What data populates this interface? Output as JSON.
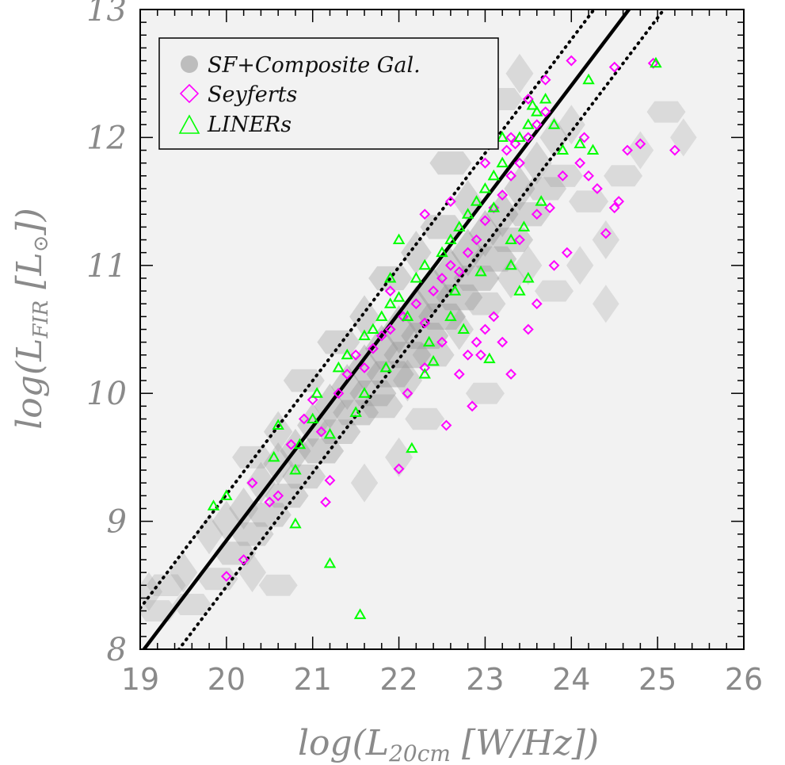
{
  "chart_data": {
    "type": "scatter",
    "title": "",
    "xlabel": "log(L20cm [W/Hz])",
    "ylabel": "log(LFIR [L⊙])",
    "xlabel_parts": {
      "pre": "log(L",
      "sub": "20cm",
      "post": " [W/Hz])"
    },
    "ylabel_parts": {
      "pre": "log(L",
      "sub": "FIR",
      "mid": " [L",
      "subsym": "⊙",
      "post": "])"
    },
    "xlim": [
      19,
      26
    ],
    "ylim": [
      8,
      13
    ],
    "x_ticks": [
      "19",
      "20",
      "21",
      "22",
      "23",
      "24",
      "25",
      "26"
    ],
    "y_ticks": [
      "8",
      "9",
      "10",
      "11",
      "12",
      "13"
    ],
    "grid": false,
    "legend_placement": "top-left",
    "legend": [
      {
        "label": "SF+Composite Gal.",
        "marker": "filled-circle",
        "color": "#bdbdbd"
      },
      {
        "label": "Seyferts",
        "marker": "diamond",
        "color": "#ff00ff"
      },
      {
        "label": "LINERs",
        "marker": "triangle",
        "color": "#00ff00"
      }
    ],
    "colors": {
      "background": "#f2f2f2",
      "density": "#9a9a9a",
      "seyferts": "#ff00ff",
      "liners": "#00ff00",
      "fit": "#000000"
    },
    "fit_line": {
      "slope": 0.889,
      "intercept": -8.93,
      "style": "solid"
    },
    "scatter_lines": [
      {
        "slope": 0.889,
        "intercept": -8.57,
        "style": "dotted"
      },
      {
        "slope": 0.889,
        "intercept": -9.29,
        "style": "dotted"
      }
    ],
    "density_cloud": [
      [
        19.1,
        8.45,
        0.25
      ],
      [
        19.3,
        8.5,
        0.3
      ],
      [
        19.5,
        8.6,
        0.35
      ],
      [
        19.6,
        8.35,
        0.25
      ],
      [
        19.8,
        8.9,
        0.35
      ],
      [
        19.9,
        8.55,
        0.35
      ],
      [
        20.0,
        9.0,
        0.4
      ],
      [
        20.1,
        8.75,
        0.45
      ],
      [
        20.2,
        9.1,
        0.45
      ],
      [
        20.3,
        8.9,
        0.5
      ],
      [
        20.4,
        9.3,
        0.45
      ],
      [
        20.5,
        9.05,
        0.55
      ],
      [
        20.6,
        9.45,
        0.5
      ],
      [
        20.7,
        9.2,
        0.55
      ],
      [
        20.8,
        9.55,
        0.6
      ],
      [
        20.9,
        9.35,
        0.55
      ],
      [
        21.0,
        9.75,
        0.6
      ],
      [
        21.1,
        9.55,
        0.65
      ],
      [
        21.2,
        9.9,
        0.65
      ],
      [
        21.3,
        9.7,
        0.6
      ],
      [
        21.4,
        10.05,
        0.7
      ],
      [
        21.5,
        9.85,
        0.7
      ],
      [
        21.6,
        10.2,
        0.75
      ],
      [
        21.7,
        10.0,
        0.75
      ],
      [
        21.8,
        10.35,
        0.8
      ],
      [
        21.9,
        10.15,
        0.8
      ],
      [
        22.0,
        10.5,
        0.85
      ],
      [
        22.1,
        10.3,
        0.8
      ],
      [
        22.2,
        10.65,
        0.85
      ],
      [
        22.3,
        10.45,
        0.8
      ],
      [
        22.4,
        10.8,
        0.85
      ],
      [
        22.5,
        10.6,
        0.8
      ],
      [
        22.6,
        10.95,
        0.8
      ],
      [
        22.7,
        10.75,
        0.75
      ],
      [
        22.8,
        11.1,
        0.8
      ],
      [
        22.9,
        10.9,
        0.7
      ],
      [
        23.0,
        11.25,
        0.75
      ],
      [
        23.1,
        11.05,
        0.7
      ],
      [
        23.2,
        11.4,
        0.7
      ],
      [
        23.3,
        11.2,
        0.6
      ],
      [
        23.4,
        11.6,
        0.6
      ],
      [
        23.5,
        11.4,
        0.55
      ],
      [
        23.6,
        11.8,
        0.5
      ],
      [
        23.7,
        11.6,
        0.45
      ],
      [
        23.8,
        12.0,
        0.4
      ],
      [
        23.9,
        11.7,
        0.35
      ],
      [
        24.0,
        12.1,
        0.3
      ],
      [
        24.2,
        11.5,
        0.3
      ],
      [
        24.4,
        11.2,
        0.25
      ],
      [
        24.6,
        11.7,
        0.25
      ],
      [
        24.8,
        11.9,
        0.2
      ],
      [
        25.1,
        12.2,
        0.25
      ],
      [
        25.3,
        12.0,
        0.2
      ],
      [
        21.3,
        10.4,
        0.5
      ],
      [
        21.6,
        10.6,
        0.5
      ],
      [
        21.9,
        10.9,
        0.55
      ],
      [
        22.2,
        11.1,
        0.55
      ],
      [
        22.5,
        11.3,
        0.55
      ],
      [
        22.8,
        11.5,
        0.5
      ],
      [
        21.8,
        9.9,
        0.5
      ],
      [
        22.1,
        10.1,
        0.45
      ],
      [
        22.4,
        10.3,
        0.45
      ],
      [
        22.7,
        10.5,
        0.4
      ],
      [
        23.0,
        10.7,
        0.4
      ],
      [
        23.3,
        10.9,
        0.35
      ],
      [
        20.9,
        10.1,
        0.4
      ],
      [
        20.6,
        9.7,
        0.4
      ],
      [
        20.3,
        9.5,
        0.35
      ],
      [
        22.0,
        9.5,
        0.3
      ],
      [
        22.3,
        9.8,
        0.3
      ],
      [
        23.5,
        11.0,
        0.3
      ],
      [
        23.8,
        10.8,
        0.25
      ],
      [
        24.1,
        11.0,
        0.25
      ],
      [
        22.6,
        11.8,
        0.45
      ],
      [
        22.9,
        12.1,
        0.4
      ],
      [
        23.2,
        12.3,
        0.35
      ],
      [
        23.4,
        12.5,
        0.3
      ],
      [
        19.2,
        8.3,
        0.25
      ],
      [
        20.3,
        8.6,
        0.3
      ],
      [
        20.6,
        8.5,
        0.25
      ],
      [
        24.4,
        10.7,
        0.2
      ],
      [
        23.0,
        10.0,
        0.25
      ],
      [
        21.6,
        9.3,
        0.25
      ]
    ],
    "series": [
      {
        "name": "Seyferts",
        "marker": "diamond",
        "points": [
          [
            20.0,
            8.57
          ],
          [
            20.2,
            8.7
          ],
          [
            20.3,
            9.3
          ],
          [
            20.5,
            9.15
          ],
          [
            20.6,
            9.2
          ],
          [
            20.75,
            9.6
          ],
          [
            20.9,
            9.8
          ],
          [
            21.0,
            9.95
          ],
          [
            21.2,
            9.32
          ],
          [
            21.15,
            9.15
          ],
          [
            21.1,
            9.7
          ],
          [
            21.3,
            10.0
          ],
          [
            21.4,
            10.15
          ],
          [
            21.5,
            10.3
          ],
          [
            21.6,
            10.2
          ],
          [
            21.7,
            10.35
          ],
          [
            21.8,
            10.45
          ],
          [
            21.9,
            10.5
          ],
          [
            22.0,
            9.41
          ],
          [
            22.05,
            10.6
          ],
          [
            22.2,
            10.7
          ],
          [
            22.3,
            10.55
          ],
          [
            22.4,
            10.8
          ],
          [
            22.5,
            10.9
          ],
          [
            22.55,
            9.75
          ],
          [
            22.6,
            11.0
          ],
          [
            22.7,
            10.95
          ],
          [
            22.8,
            11.1
          ],
          [
            22.9,
            11.2
          ],
          [
            22.7,
            10.15
          ],
          [
            22.8,
            10.3
          ],
          [
            22.9,
            10.4
          ],
          [
            23.0,
            11.35
          ],
          [
            23.1,
            11.45
          ],
          [
            23.2,
            11.55
          ],
          [
            23.25,
            11.9
          ],
          [
            23.3,
            11.7
          ],
          [
            23.35,
            11.95
          ],
          [
            23.4,
            11.8
          ],
          [
            23.5,
            12.0
          ],
          [
            23.6,
            12.1
          ],
          [
            23.7,
            12.2
          ],
          [
            23.3,
            10.15
          ],
          [
            23.2,
            10.4
          ],
          [
            23.1,
            10.6
          ],
          [
            23.0,
            10.5
          ],
          [
            22.95,
            10.3
          ],
          [
            22.85,
            9.9
          ],
          [
            23.6,
            11.4
          ],
          [
            23.75,
            11.45
          ],
          [
            23.9,
            11.7
          ],
          [
            24.0,
            12.6
          ],
          [
            24.1,
            11.8
          ],
          [
            24.2,
            11.7
          ],
          [
            24.3,
            11.6
          ],
          [
            24.4,
            11.25
          ],
          [
            24.5,
            11.45
          ],
          [
            24.55,
            11.5
          ],
          [
            24.65,
            11.9
          ],
          [
            24.8,
            11.95
          ],
          [
            24.5,
            12.55
          ],
          [
            24.95,
            12.58
          ],
          [
            25.2,
            11.9
          ],
          [
            22.5,
            10.4
          ],
          [
            22.3,
            10.2
          ],
          [
            22.1,
            10.0
          ],
          [
            21.9,
            10.8
          ],
          [
            22.6,
            11.5
          ],
          [
            22.3,
            11.4
          ],
          [
            23.4,
            11.2
          ],
          [
            23.6,
            10.7
          ],
          [
            23.5,
            10.5
          ],
          [
            23.8,
            11.0
          ],
          [
            23.0,
            11.8
          ],
          [
            23.3,
            12.0
          ],
          [
            23.5,
            12.3
          ],
          [
            23.7,
            12.45
          ],
          [
            24.15,
            12.0
          ],
          [
            23.95,
            11.1
          ]
        ]
      },
      {
        "name": "LINERs",
        "marker": "triangle",
        "points": [
          [
            19.85,
            9.12
          ],
          [
            20.0,
            9.2
          ],
          [
            20.55,
            9.5
          ],
          [
            20.6,
            9.75
          ],
          [
            20.8,
            9.4
          ],
          [
            20.85,
            9.6
          ],
          [
            20.8,
            8.98
          ],
          [
            21.0,
            9.8
          ],
          [
            21.05,
            10.0
          ],
          [
            21.2,
            8.67
          ],
          [
            21.2,
            9.68
          ],
          [
            21.3,
            10.2
          ],
          [
            21.4,
            10.3
          ],
          [
            21.5,
            9.85
          ],
          [
            21.55,
            8.27
          ],
          [
            21.6,
            10.45
          ],
          [
            21.7,
            10.5
          ],
          [
            21.8,
            10.6
          ],
          [
            21.85,
            10.2
          ],
          [
            21.9,
            10.7
          ],
          [
            22.0,
            10.75
          ],
          [
            22.1,
            10.6
          ],
          [
            22.15,
            9.57
          ],
          [
            22.2,
            10.9
          ],
          [
            22.3,
            11.0
          ],
          [
            22.35,
            10.4
          ],
          [
            22.4,
            10.25
          ],
          [
            22.5,
            11.1
          ],
          [
            22.6,
            11.2
          ],
          [
            22.65,
            10.8
          ],
          [
            22.7,
            11.3
          ],
          [
            22.75,
            10.5
          ],
          [
            22.8,
            11.4
          ],
          [
            22.9,
            11.5
          ],
          [
            22.95,
            10.95
          ],
          [
            23.0,
            11.6
          ],
          [
            23.05,
            10.27
          ],
          [
            23.1,
            11.7
          ],
          [
            23.2,
            11.8
          ],
          [
            23.3,
            11.0
          ],
          [
            23.4,
            12.0
          ],
          [
            23.45,
            11.3
          ],
          [
            23.5,
            12.1
          ],
          [
            23.6,
            12.2
          ],
          [
            23.65,
            11.5
          ],
          [
            23.7,
            12.3
          ],
          [
            23.8,
            12.1
          ],
          [
            23.9,
            11.9
          ],
          [
            24.1,
            11.95
          ],
          [
            24.2,
            12.45
          ],
          [
            24.25,
            11.9
          ],
          [
            24.98,
            12.58
          ],
          [
            23.4,
            10.8
          ],
          [
            23.3,
            11.2
          ],
          [
            23.5,
            10.9
          ],
          [
            22.3,
            10.15
          ],
          [
            21.9,
            10.9
          ],
          [
            21.6,
            10.0
          ],
          [
            22.6,
            10.6
          ],
          [
            22.0,
            11.2
          ],
          [
            23.1,
            11.45
          ],
          [
            23.2,
            12.0
          ],
          [
            23.55,
            12.25
          ]
        ]
      }
    ]
  }
}
